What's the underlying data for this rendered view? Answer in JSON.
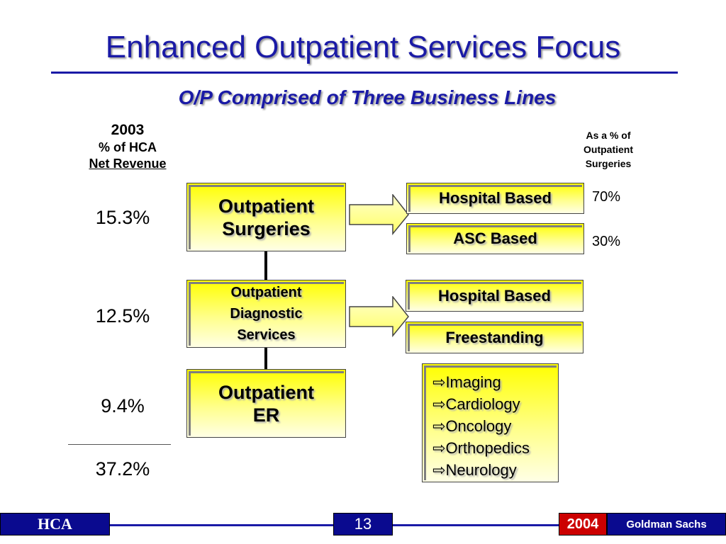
{
  "title": "Enhanced Outpatient Services Focus",
  "subtitle": "O/P Comprised of Three Business Lines",
  "left_header": {
    "year": "2003",
    "line2": "% of HCA",
    "line3": "Net Revenue"
  },
  "right_header": {
    "line1": "As a % of",
    "line2": "Outpatient",
    "line3": "Surgeries"
  },
  "rows": [
    {
      "label_line1": "Outpatient",
      "label_line2": "Surgeries",
      "revenue_pct": "15.3%"
    },
    {
      "label_line1": "Outpatient",
      "label_line2": "Diagnostic",
      "label_line3": "Services",
      "revenue_pct": "12.5%"
    },
    {
      "label_line1": "Outpatient",
      "label_line2": "ER",
      "revenue_pct": "9.4%"
    }
  ],
  "total_pct": "37.2%",
  "surgery_lines": [
    {
      "label": "Hospital Based",
      "share": "70%"
    },
    {
      "label": "ASC Based",
      "share": "30%"
    }
  ],
  "diagnostic_lines": [
    {
      "label": "Hospital Based"
    },
    {
      "label": "Freestanding"
    }
  ],
  "er_services": [
    "Imaging",
    "Cardiology",
    "Oncology",
    "Orthopedics",
    "Neurology"
  ],
  "bullet_glyph": "⇨",
  "footer": {
    "left": "HCA",
    "page": "13",
    "year": "2004",
    "right": "Goldman Sachs"
  },
  "colors": {
    "title_blue": "#1a1aa6",
    "box_yellow": "#ffff00",
    "footer_navy": "#0a0a8f",
    "year_red": "#cc0000"
  }
}
